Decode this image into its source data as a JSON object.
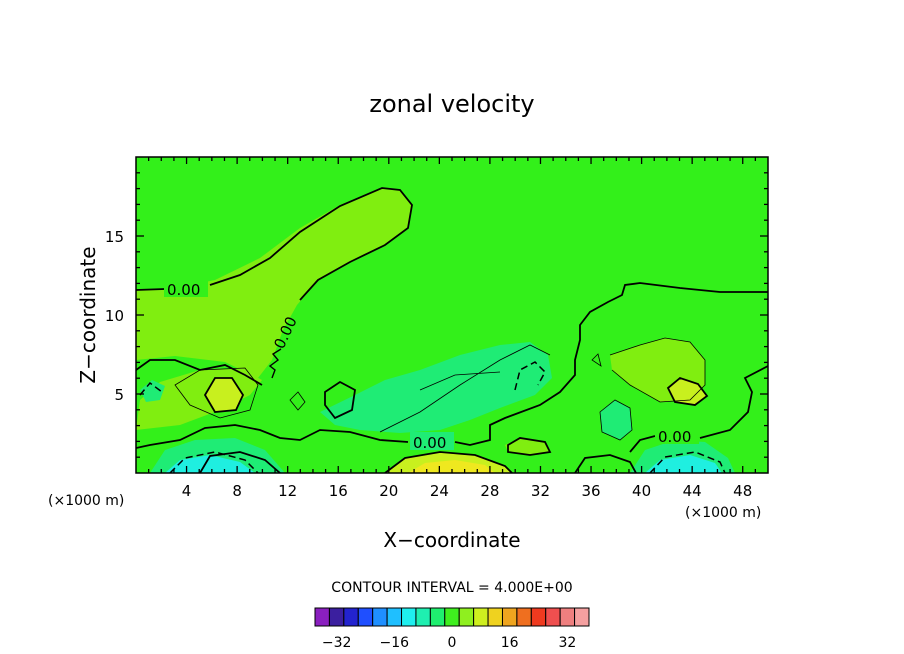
{
  "chart_data": {
    "type": "contour",
    "title": "zonal velocity",
    "xlabel": "X−coordinate",
    "ylabel": "Z−coordinate",
    "x_unit_left": "(×1000 m)",
    "x_unit_right": "(×1000 m)",
    "xlim": [
      0,
      50
    ],
    "ylim": [
      0,
      20
    ],
    "x_ticks": [
      4,
      8,
      12,
      16,
      20,
      24,
      28,
      32,
      36,
      40,
      44,
      48
    ],
    "x_tick_labels": [
      "4",
      "8",
      "12",
      "16",
      "20",
      "24",
      "28",
      "32",
      "36",
      "40",
      "44",
      "48"
    ],
    "y_ticks": [
      5,
      10,
      15
    ],
    "y_tick_labels": [
      "5",
      "10",
      "15"
    ],
    "contour_labels": [
      "0.00",
      "0.00",
      "0.00",
      "0.00"
    ],
    "contour_interval_text": "CONTOUR INTERVAL = 4.000E+00",
    "colorbar": {
      "colors": [
        "#8a1fbf",
        "#3b1f9f",
        "#2323cf",
        "#1f4fff",
        "#1f8fff",
        "#1fbfff",
        "#1fefef",
        "#1fefb0",
        "#1fef6f",
        "#3fef1f",
        "#8fef1f",
        "#cfef1f",
        "#efd21f",
        "#efa51f",
        "#ef6f1f",
        "#ef3a1f",
        "#ef4f4f",
        "#ef7f7f",
        "#f5a0a0"
      ],
      "tick_labels": [
        "−32",
        "−16",
        "0",
        "16",
        "32"
      ],
      "tick_values": [
        -32,
        -16,
        0,
        16,
        32
      ],
      "vmin": -38,
      "vmax": 38
    },
    "colors": {
      "background_field": "#33f01a",
      "light_green": "#80ee10",
      "yellow_green": "#c8f01e",
      "teal_green": "#1fec75",
      "cyan": "#1fefe0",
      "yellow": "#efe81f"
    }
  }
}
